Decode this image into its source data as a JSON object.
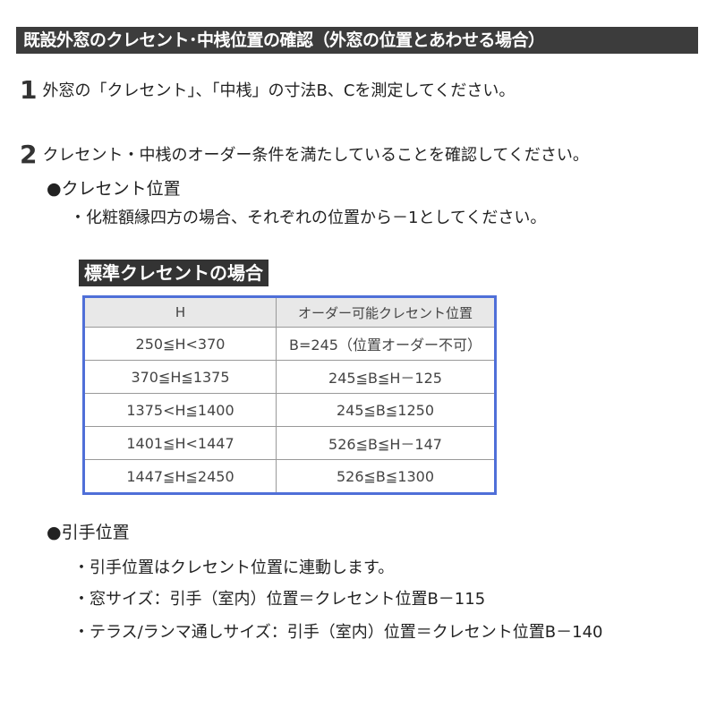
{
  "title": "既設外窓のクレセント･中桟位置の確認（外窓の位置とあわせる場合）",
  "step1": {
    "num": "1",
    "text": "外窓の「クレセント」、「中桟」の寸法B、Cを測定してください。"
  },
  "step2": {
    "num": "2",
    "text": "クレセント・中桟のオーダー条件を満たしていることを確認してください。"
  },
  "crescent": {
    "heading": "●クレセント位置",
    "note": "・化粧額縁四方の場合、それぞれの位置から－1としてください。"
  },
  "table": {
    "title": "標準クレセントの場合",
    "headers": [
      "H",
      "オーダー可能クレセント位置"
    ],
    "rows": [
      [
        "250≦H<370",
        "B=245（位置オーダー不可）"
      ],
      [
        "370≦H≦1375",
        "245≦B≦H－125"
      ],
      [
        "1375<H≦1400",
        "245≦B≦1250"
      ],
      [
        "1401≦H<1447",
        "526≦B≦H－147"
      ],
      [
        "1447≦H≦2450",
        "526≦B≦1300"
      ]
    ]
  },
  "handle": {
    "heading": "●引手位置",
    "items": [
      "・引手位置はクレセント位置に連動します。",
      "・窓サイズ：引手（室内）位置＝クレセント位置B－115",
      "・テラス/ランマ通しサイズ：引手（室内）位置＝クレセント位置B－140"
    ]
  }
}
